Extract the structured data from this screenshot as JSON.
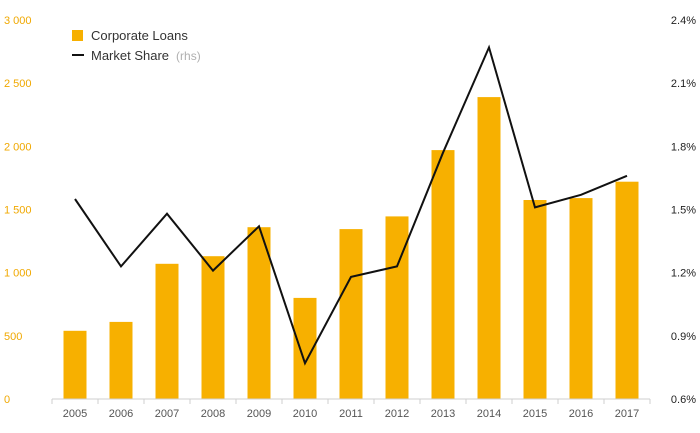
{
  "chart_data": {
    "type": "bar",
    "categories": [
      "2005",
      "2006",
      "2007",
      "2008",
      "2009",
      "2010",
      "2011",
      "2012",
      "2013",
      "2014",
      "2015",
      "2016",
      "2017"
    ],
    "series": [
      {
        "name": "Corporate Loans",
        "type": "bar",
        "axis": "left",
        "color": "#f7b000",
        "values": [
          540,
          610,
          1070,
          1130,
          1360,
          800,
          1345,
          1445,
          1970,
          2390,
          1575,
          1590,
          1720
        ]
      },
      {
        "name": "Market Share",
        "suffix": "(rhs)",
        "type": "line",
        "axis": "right",
        "color": "#111111",
        "values": [
          1.55,
          1.23,
          1.48,
          1.21,
          1.42,
          0.77,
          1.18,
          1.23,
          1.77,
          2.27,
          1.51,
          1.57,
          1.66
        ]
      }
    ],
    "y_left": {
      "range": [
        0,
        3000
      ],
      "ticks": [
        0,
        500,
        1000,
        1500,
        2000,
        2500,
        3000
      ],
      "tick_labels": [
        "0",
        "500",
        "1 000",
        "1 500",
        "2 000",
        "2 500",
        "3 000"
      ]
    },
    "y_right": {
      "range": [
        0.6,
        2.4
      ],
      "ticks": [
        0.6,
        0.9,
        1.2,
        1.5,
        1.8,
        2.1,
        2.4
      ],
      "tick_labels": [
        "0.6%",
        "0.9%",
        "1.2%",
        "1.5%",
        "1.8%",
        "2.1%",
        "2.4%"
      ]
    },
    "legend_position": "top-left",
    "grid": "none"
  }
}
